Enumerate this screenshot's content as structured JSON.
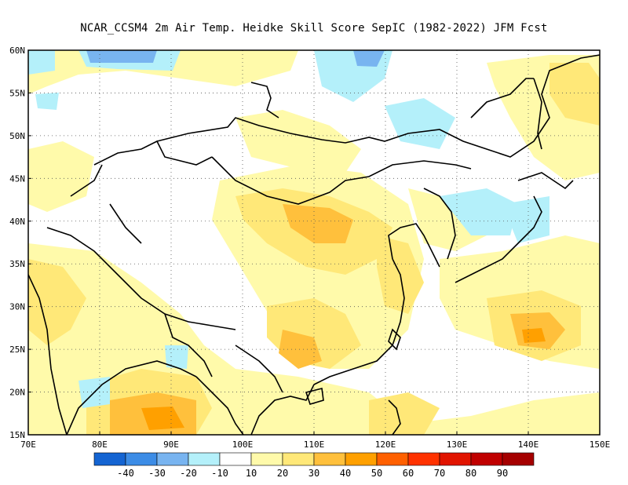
{
  "title": "NCAR_CCSM4  2m Air Temp. Heidke Skill Score SepIC (1982-2022) JFM Fcst",
  "map": {
    "projection": "cylindrical",
    "lon_range": [
      70,
      150
    ],
    "lat_range": [
      15,
      60
    ],
    "grid_lines": "dotted",
    "lat_labels": [
      "15N",
      "20N",
      "25N",
      "30N",
      "35N",
      "40N",
      "45N",
      "50N",
      "55N",
      "60N"
    ],
    "lon_labels": [
      "70E",
      "80E",
      "90E",
      "100E",
      "110E",
      "120E",
      "130E",
      "140E",
      "150E"
    ],
    "lat_values": [
      15,
      20,
      25,
      30,
      35,
      40,
      45,
      50,
      55,
      60
    ],
    "lon_values": [
      70,
      80,
      90,
      100,
      110,
      120,
      130,
      140,
      150
    ]
  },
  "colorbar": {
    "colors": [
      "#1464d2",
      "#3c8ce6",
      "#78b4f0",
      "#b4f0fa",
      "#ffffff",
      "#fffaaa",
      "#ffe878",
      "#ffc03c",
      "#ffa000",
      "#ff6000",
      "#ff3200",
      "#e11400",
      "#c00000",
      "#a50000"
    ],
    "labels": [
      "-40",
      "-30",
      "-20",
      "-10",
      "10",
      "20",
      "30",
      "40",
      "50",
      "60",
      "70",
      "80",
      "90"
    ]
  }
}
